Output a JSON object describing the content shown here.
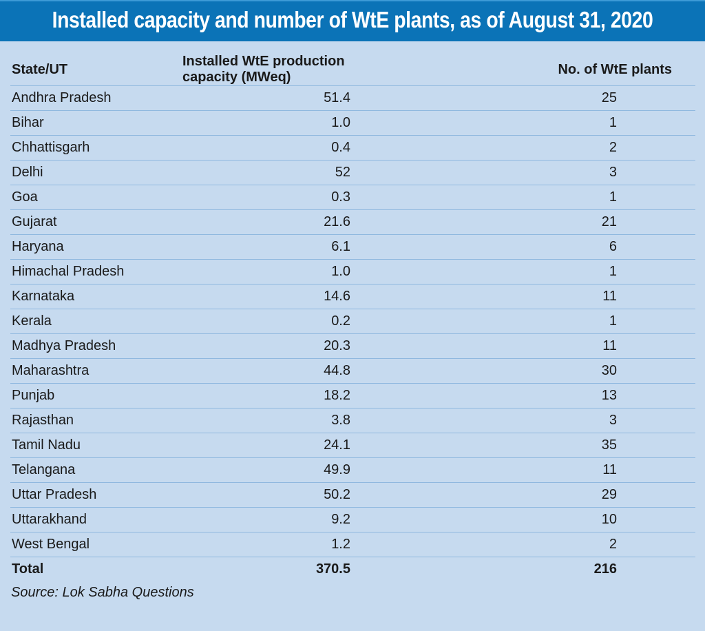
{
  "title": "Installed capacity and number of WtE plants, as of August 31, 2020",
  "columns": [
    "State/UT",
    "Installed WtE production capacity (MWeq)",
    "No. of WtE plants"
  ],
  "rows": [
    [
      "Andhra Pradesh",
      "51.4",
      "25"
    ],
    [
      "Bihar",
      "1.0",
      "1"
    ],
    [
      "Chhattisgarh",
      "0.4",
      "2"
    ],
    [
      "Delhi",
      "52",
      "3"
    ],
    [
      "Goa",
      "0.3",
      "1"
    ],
    [
      "Gujarat",
      "21.6",
      "21"
    ],
    [
      "Haryana",
      "6.1",
      "6"
    ],
    [
      "Himachal Pradesh",
      "1.0",
      "1"
    ],
    [
      "Karnataka",
      "14.6",
      "11"
    ],
    [
      "Kerala",
      "0.2",
      "1"
    ],
    [
      "Madhya Pradesh",
      "20.3",
      "11"
    ],
    [
      "Maharashtra",
      "44.8",
      "30"
    ],
    [
      "Punjab",
      "18.2",
      "13"
    ],
    [
      "Rajasthan",
      "3.8",
      "3"
    ],
    [
      "Tamil Nadu",
      "24.1",
      "35"
    ],
    [
      "Telangana",
      "49.9",
      "11"
    ],
    [
      "Uttar Pradesh",
      "50.2",
      "29"
    ],
    [
      "Uttarakhand",
      "9.2",
      "10"
    ],
    [
      "West Bengal",
      "1.2",
      "2"
    ]
  ],
  "total": [
    "Total",
    "370.5",
    "216"
  ],
  "source": "Source: Lok Sabha Questions",
  "colors": {
    "title_bar": "#0b73b7",
    "background": "#c6daef",
    "rule": "#8fb8df"
  }
}
